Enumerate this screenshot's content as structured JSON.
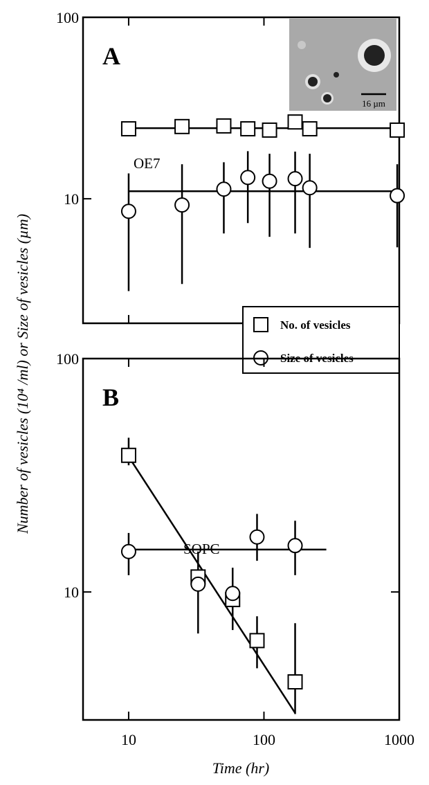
{
  "chart_data": [
    {
      "type": "scatter",
      "label": "A",
      "annotation": "OE7",
      "inset_scale": "16 µm",
      "ylabel": "Number of vesicles (10⁴ /ml)  or  Size of vesicles (µm)",
      "xscale": "log",
      "yscale": "log",
      "xlim": [
        4.6,
        1000
      ],
      "ylim": [
        2.06,
        100
      ],
      "xticks": [
        10,
        100,
        1000
      ],
      "show_xtick_labels": false,
      "yticks": [
        10,
        100
      ],
      "legend": "lower-right",
      "series": [
        {
          "name": "No. of vesicles",
          "marker": "square",
          "color": "#000000",
          "x": [
            10,
            24.8,
            50.5,
            76,
            110,
            170,
            218,
            966
          ],
          "values": [
            24.3,
            25,
            25.2,
            24.3,
            23.9,
            26.5,
            24.3,
            23.9
          ],
          "fit": {
            "x": [
              10,
              966
            ],
            "values": [
              24.5,
              24.5
            ]
          }
        },
        {
          "name": "Size of vesicles",
          "marker": "circle",
          "color": "#000000",
          "x": [
            10,
            24.8,
            50.5,
            76,
            110,
            170,
            218,
            966
          ],
          "values": [
            8.53,
            9.24,
            11.3,
            13.1,
            12.5,
            12.9,
            11.5,
            10.4
          ],
          "lower": [
            3.1,
            3.39,
            6.44,
            7.35,
            6.17,
            6.44,
            5.36,
            5.4
          ],
          "upper": [
            13.8,
            15.5,
            15.9,
            18.3,
            17.7,
            18.2,
            17.7,
            15.5
          ],
          "fit": {
            "x": [
              10,
              966
            ],
            "values": [
              11,
              11
            ]
          }
        }
      ]
    },
    {
      "type": "scatter",
      "label": "B",
      "annotation": "SOPC",
      "xlabel": "Time (hr)",
      "xscale": "log",
      "yscale": "log",
      "xlim": [
        4.6,
        1000
      ],
      "ylim": [
        2.83,
        100
      ],
      "xticks": [
        10,
        100,
        1000
      ],
      "show_xtick_labels": true,
      "yticks": [
        10,
        100
      ],
      "series": [
        {
          "marker": "square",
          "color": "#000000",
          "x": [
            10,
            32.6,
            58.7,
            88.9,
            170
          ],
          "values": [
            38.5,
            11.6,
            9.28,
            6.19,
            4.12
          ],
          "lower": [
            34.9,
            null,
            null,
            4.71,
            3.0
          ],
          "upper": [
            45.8,
            null,
            null,
            7.87,
            7.35
          ],
          "fit": {
            "x": [
              10,
              170
            ],
            "values": [
              38,
              3.03
            ]
          }
        },
        {
          "marker": "circle",
          "color": "#000000",
          "x": [
            10,
            32.6,
            58.7,
            88.9,
            170
          ],
          "values": [
            14.9,
            10.8,
            9.86,
            17.2,
            15.8
          ],
          "lower": [
            11.8,
            6.64,
            6.87,
            13.6,
            11.8
          ],
          "upper": [
            17.9,
            14.9,
            12.7,
            21.6,
            20.2
          ],
          "fit": {
            "x": [
              10,
              289
            ],
            "values": [
              15.2,
              15.2
            ]
          }
        }
      ]
    }
  ]
}
